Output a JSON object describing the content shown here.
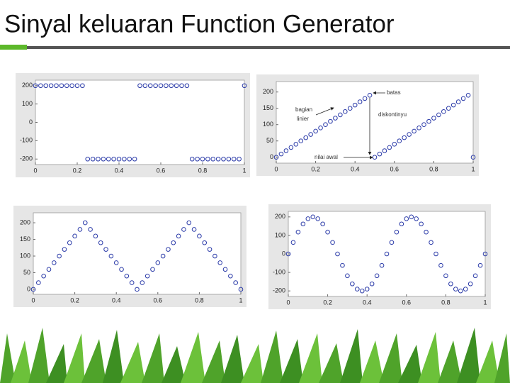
{
  "title": "Sinyal keluaran Function Generator",
  "chart_data": [
    {
      "type": "scatter",
      "color": "#2a3aa8",
      "x": [
        0,
        0.025,
        0.05,
        0.075,
        0.1,
        0.125,
        0.15,
        0.175,
        0.2,
        0.225,
        0.25,
        0.275,
        0.3,
        0.325,
        0.35,
        0.375,
        0.4,
        0.425,
        0.45,
        0.475,
        0.5,
        0.525,
        0.55,
        0.575,
        0.6,
        0.625,
        0.65,
        0.675,
        0.7,
        0.725,
        0.75,
        0.775,
        0.8,
        0.825,
        0.85,
        0.875,
        0.9,
        0.925,
        0.95,
        0.975,
        1
      ],
      "values": [
        200,
        200,
        200,
        200,
        200,
        200,
        200,
        200,
        200,
        200,
        -200,
        -200,
        -200,
        -200,
        -200,
        -200,
        -200,
        -200,
        -200,
        -200,
        200,
        200,
        200,
        200,
        200,
        200,
        200,
        200,
        200,
        200,
        -200,
        -200,
        -200,
        -200,
        -200,
        -200,
        -200,
        -200,
        -200,
        -200,
        200
      ],
      "xlim": [
        0,
        1
      ],
      "xticks": [
        0,
        0.2,
        0.4,
        0.6,
        0.8,
        1
      ],
      "ylim": [
        -230,
        230
      ],
      "yticks": [
        200,
        100,
        0,
        -100,
        -200
      ]
    },
    {
      "type": "scatter",
      "color": "#2a3aa8",
      "x": [
        0,
        0.025,
        0.05,
        0.075,
        0.1,
        0.125,
        0.15,
        0.175,
        0.2,
        0.225,
        0.25,
        0.275,
        0.3,
        0.325,
        0.35,
        0.375,
        0.4,
        0.425,
        0.45,
        0.475,
        0.5,
        0.525,
        0.55,
        0.575,
        0.6,
        0.625,
        0.65,
        0.675,
        0.7,
        0.725,
        0.75,
        0.775,
        0.8,
        0.825,
        0.85,
        0.875,
        0.9,
        0.925,
        0.95,
        0.975,
        1
      ],
      "values": [
        0,
        10,
        20,
        30,
        40,
        50,
        60,
        70,
        80,
        90,
        100,
        110,
        120,
        130,
        140,
        150,
        160,
        170,
        180,
        190,
        0,
        10,
        20,
        30,
        40,
        50,
        60,
        70,
        80,
        90,
        100,
        110,
        120,
        130,
        140,
        150,
        160,
        170,
        180,
        190,
        0
      ],
      "xlim": [
        0,
        1
      ],
      "xticks": [
        0,
        0.2,
        0.4,
        0.6,
        0.8,
        1
      ],
      "ylim": [
        -18,
        232
      ],
      "yticks": [
        200,
        150,
        100,
        50,
        0
      ],
      "annotations": [
        "batas",
        "bagian",
        "linier",
        "diskontinyu",
        "nilai awal"
      ]
    },
    {
      "type": "scatter",
      "color": "#2a3aa8",
      "x": [
        0,
        0.025,
        0.05,
        0.075,
        0.1,
        0.125,
        0.15,
        0.175,
        0.2,
        0.225,
        0.25,
        0.275,
        0.3,
        0.325,
        0.35,
        0.375,
        0.4,
        0.425,
        0.45,
        0.475,
        0.5,
        0.525,
        0.55,
        0.575,
        0.6,
        0.625,
        0.65,
        0.675,
        0.7,
        0.725,
        0.75,
        0.775,
        0.8,
        0.825,
        0.85,
        0.875,
        0.9,
        0.925,
        0.95,
        0.975,
        1
      ],
      "values": [
        0,
        20,
        40,
        60,
        80,
        100,
        120,
        140,
        160,
        180,
        200,
        180,
        160,
        140,
        120,
        100,
        80,
        60,
        40,
        20,
        0,
        20,
        40,
        60,
        80,
        100,
        120,
        140,
        160,
        180,
        200,
        180,
        160,
        140,
        120,
        100,
        80,
        60,
        40,
        20,
        0
      ],
      "xlim": [
        0,
        1
      ],
      "xticks": [
        0,
        0.2,
        0.4,
        0.6,
        0.8,
        1
      ],
      "ylim": [
        -15,
        230
      ],
      "yticks": [
        200,
        150,
        100,
        50,
        0
      ]
    },
    {
      "type": "scatter",
      "color": "#2a3aa8",
      "x": [
        0,
        0.025,
        0.05,
        0.075,
        0.1,
        0.125,
        0.15,
        0.175,
        0.2,
        0.225,
        0.25,
        0.275,
        0.3,
        0.325,
        0.35,
        0.375,
        0.4,
        0.425,
        0.45,
        0.475,
        0.5,
        0.525,
        0.55,
        0.575,
        0.6,
        0.625,
        0.65,
        0.675,
        0.7,
        0.725,
        0.75,
        0.775,
        0.8,
        0.825,
        0.85,
        0.875,
        0.9,
        0.925,
        0.95,
        0.975,
        1
      ],
      "values": [
        0,
        62,
        118,
        162,
        190,
        200,
        190,
        162,
        118,
        62,
        0,
        -62,
        -118,
        -162,
        -190,
        -200,
        -190,
        -162,
        -118,
        -62,
        0,
        62,
        118,
        162,
        190,
        200,
        190,
        162,
        118,
        62,
        0,
        -62,
        -118,
        -162,
        -190,
        -200,
        -190,
        -162,
        -118,
        -62,
        0
      ],
      "xlim": [
        0,
        1
      ],
      "xticks": [
        0,
        0.2,
        0.4,
        0.6,
        0.8,
        1
      ],
      "ylim": [
        -230,
        230
      ],
      "yticks": [
        200,
        100,
        0,
        -100,
        -200
      ]
    }
  ]
}
